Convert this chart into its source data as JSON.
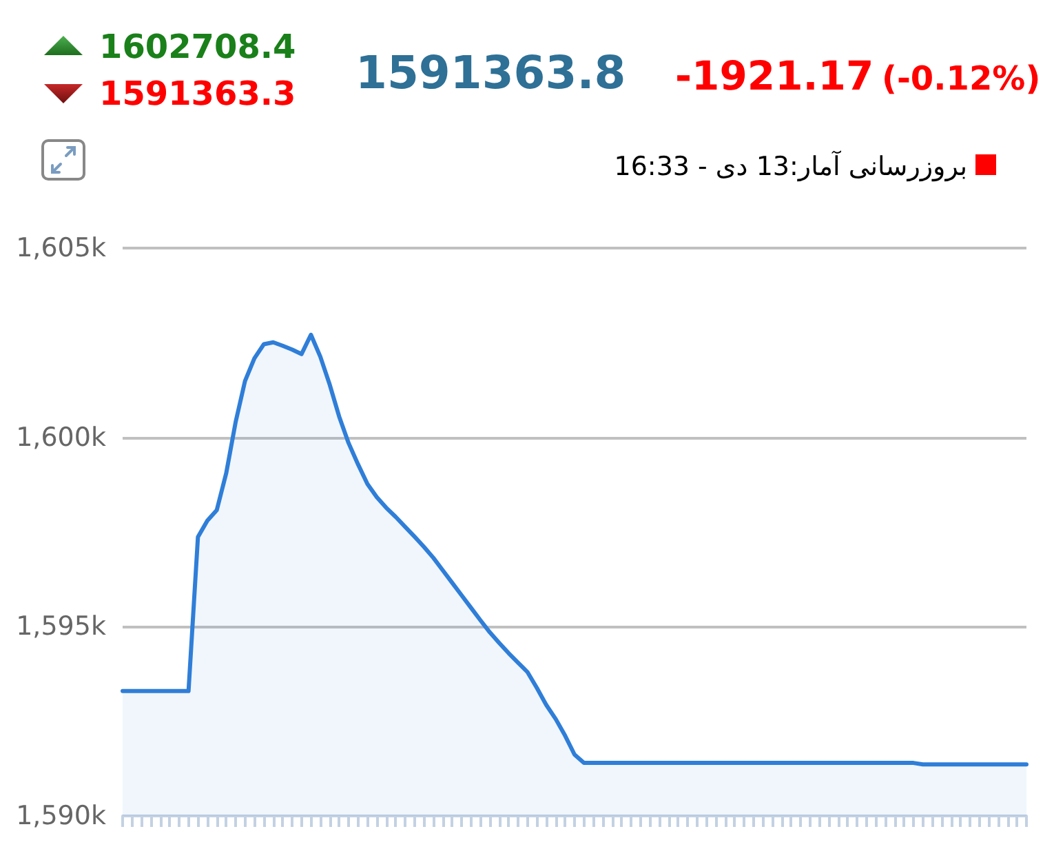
{
  "chart_data": {
    "type": "area",
    "annotations": [
      "1602708.4",
      "1591363.3",
      "1591363.8",
      "-1921.17",
      "(-0.12%)",
      "بروزرسانی آمار:13 دی - 16:33"
    ],
    "categories": [
      null,
      null,
      null,
      null,
      null,
      null,
      null,
      null,
      null,
      null,
      null,
      null,
      null,
      null,
      null,
      null,
      null,
      null,
      null,
      null,
      null,
      null,
      null,
      null,
      null,
      null,
      null,
      null,
      null,
      null,
      null,
      null,
      null,
      null,
      null,
      null,
      null,
      null,
      null,
      null,
      null,
      null,
      null,
      null,
      null,
      null,
      null,
      null,
      null,
      null,
      null,
      null,
      null,
      null,
      null,
      null,
      null,
      null,
      null,
      null,
      null,
      null,
      null,
      null,
      null,
      null,
      null,
      null,
      null,
      null,
      null,
      null,
      null,
      null,
      null,
      null,
      null,
      null,
      null,
      null,
      null,
      null,
      null,
      null,
      null,
      null,
      null,
      null,
      null,
      null,
      null,
      null,
      null,
      null,
      null,
      null,
      null
    ],
    "values": [
      1593300,
      1593300,
      1593300,
      1593300,
      1593300,
      1593300,
      1593300,
      1593300,
      1597370,
      1597800,
      1598080,
      1599050,
      1600400,
      1601490,
      1602090,
      1602460,
      1602510,
      1602420,
      1602320,
      1602200,
      1602710,
      1602130,
      1601390,
      1600550,
      1599850,
      1599290,
      1598770,
      1598420,
      1598140,
      1597900,
      1597640,
      1597380,
      1597110,
      1596820,
      1596490,
      1596160,
      1595830,
      1595500,
      1595170,
      1594850,
      1594570,
      1594300,
      1594050,
      1593800,
      1593380,
      1592930,
      1592560,
      1592120,
      1591620,
      1591400,
      1591400,
      1591400,
      1591400,
      1591400,
      1591400,
      1591400,
      1591400,
      1591400,
      1591400,
      1591400,
      1591400,
      1591400,
      1591400,
      1591400,
      1591400,
      1591400,
      1591400,
      1591400,
      1591400,
      1591400,
      1591400,
      1591400,
      1591400,
      1591400,
      1591400,
      1591400,
      1591400,
      1591400,
      1591400,
      1591400,
      1591400,
      1591400,
      1591400,
      1591400,
      1591400,
      1591360,
      1591360,
      1591360,
      1591360,
      1591360,
      1591360,
      1591360,
      1591360,
      1591360,
      1591360,
      1591360,
      1591360
    ],
    "color": "#2f7ed8",
    "ylim": [
      1590000,
      1605000
    ],
    "yticks": [
      {
        "value": 1590000,
        "label": "1,590k"
      },
      {
        "value": 1595000,
        "label": "1,595k"
      },
      {
        "value": 1600000,
        "label": "1,600k"
      },
      {
        "value": 1605000,
        "label": "1,605k"
      }
    ],
    "grid": "y",
    "tick_labels": "y",
    "marker": "none",
    "line_style": "solid"
  }
}
